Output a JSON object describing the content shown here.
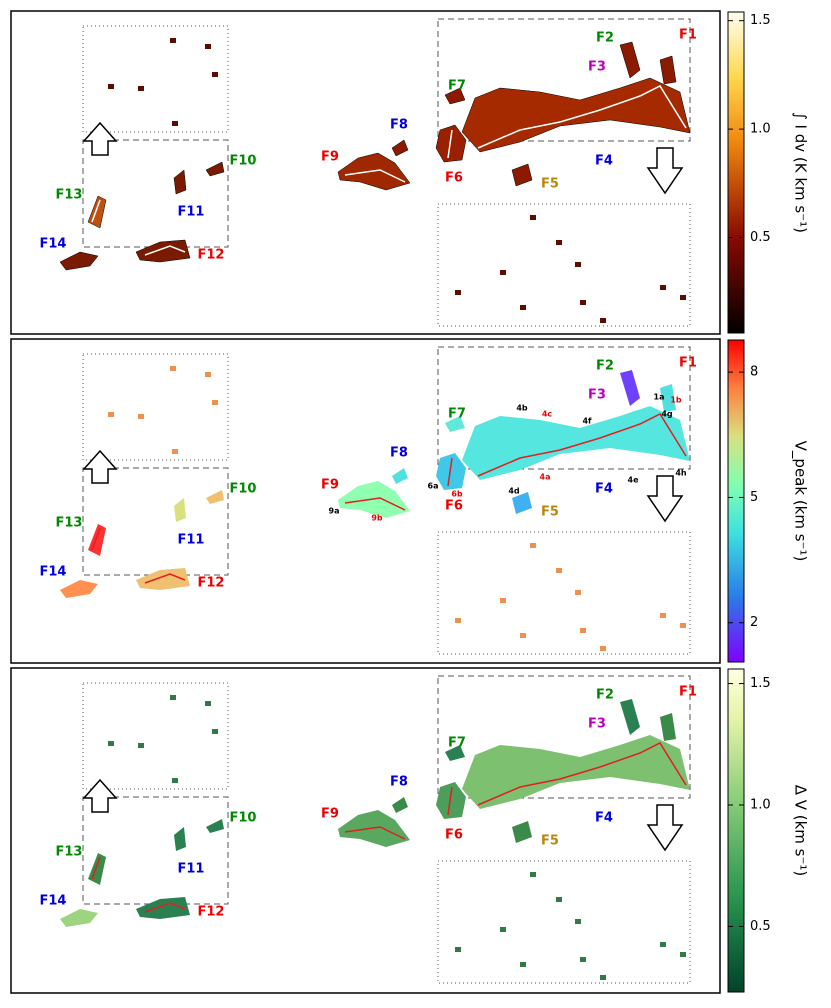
{
  "panels": [
    {
      "labels": [
        "F1",
        "F2",
        "F3",
        "F4",
        "F5",
        "F6",
        "F7",
        "F8",
        "F9",
        "F10",
        "F11",
        "F12",
        "F13",
        "F14"
      ],
      "colorbar": {
        "label": "∫ I dv (K km s⁻¹)",
        "lim": [
          0.06,
          1.54
        ],
        "ticks": [
          0.5,
          {
            "value": 1.0,
            "label": "1.0"
          },
          1.5
        ]
      }
    },
    {
      "labels": [
        "F1",
        "F2",
        "F3",
        "F4",
        "F5",
        "F6",
        "F7",
        "F8",
        "F9",
        "F10",
        "F11",
        "F12",
        "F13",
        "F14"
      ],
      "substructure_labels": [
        "1a",
        "1b",
        "4b",
        "4c",
        "4f",
        "4g",
        "6a",
        "6b",
        "4d",
        "4a",
        "4e",
        "4h",
        "9a",
        "9b"
      ],
      "colorbar": {
        "label": "V_peak (km s⁻¹)",
        "lim": [
          1.06,
          8.77
        ],
        "ticks": [
          2,
          5,
          8
        ]
      }
    },
    {
      "labels": [
        "F1",
        "F2",
        "F3",
        "F4",
        "F5",
        "F6",
        "F7",
        "F8",
        "F9",
        "F10",
        "F11",
        "F12",
        "F13",
        "F14"
      ],
      "colorbar": {
        "label": "Δ V (km s⁻¹)",
        "lim": [
          0.23,
          1.56
        ],
        "ticks": [
          0.5,
          {
            "value": 1.0,
            "label": "1.0"
          },
          1.5
        ]
      }
    }
  ]
}
